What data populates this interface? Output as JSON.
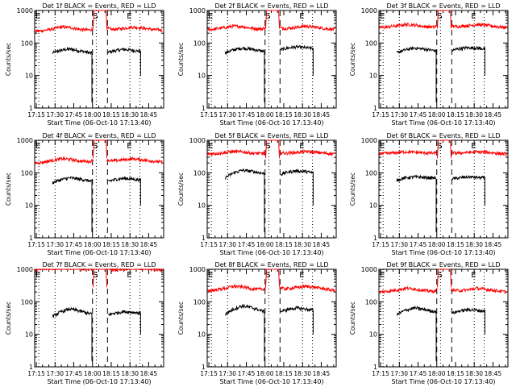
{
  "figure": {
    "background": "#ffffff",
    "axis_color": "#000000",
    "events_color": "#000000",
    "lld_color": "#ff0000"
  },
  "shared_axes": {
    "xlabel": "Start Time (06-Oct-10 17:13:40)",
    "ylabel": "Counts/sec",
    "x_tick_labels": [
      "17:15",
      "17:30",
      "17:45",
      "18:00",
      "18:15",
      "18:30",
      "18:45"
    ],
    "x_ticks_minutes_after_17h": [
      15,
      30,
      45,
      60,
      75,
      90,
      105
    ],
    "xlim_minutes_after_17h": [
      13.67,
      117
    ],
    "ylim": [
      1,
      1000
    ],
    "yscale": "log",
    "y_tick_labels": [
      "1",
      "10",
      "100",
      "1000"
    ],
    "y_ticks": [
      1,
      10,
      100,
      1000
    ],
    "markers": [
      {
        "label": "E",
        "minutes_after_17h": 17,
        "style": "dotted"
      },
      {
        "label": "",
        "minutes_after_17h": 30,
        "style": "dotted"
      },
      {
        "label": "",
        "minutes_after_17h": 60,
        "style": "dashed"
      },
      {
        "label": "S",
        "minutes_after_17h": 63,
        "style": "dotted"
      },
      {
        "label": "",
        "minutes_after_17h": 72,
        "style": "dashed"
      },
      {
        "label": "E",
        "minutes_after_17h": 90,
        "style": "dotted"
      },
      {
        "label": "",
        "minutes_after_17h": 98,
        "style": "dotted"
      }
    ]
  },
  "chart_data": [
    {
      "type": "line",
      "title": "Det 1f BLACK = Events, RED = LLD",
      "series": [
        {
          "name": "Events",
          "color": "#000000",
          "segments": [
            {
              "x": [
                28,
                35,
                42,
                50,
                56,
                59.5
              ],
              "y": [
                50,
                60,
                65,
                57,
                52,
                48
              ]
            },
            {
              "x": [
                72.5,
                78,
                85,
                92,
                98.5
              ],
              "y": [
                52,
                58,
                64,
                60,
                55
              ]
            }
          ]
        },
        {
          "name": "LLD",
          "color": "#ff0000",
          "segments": [
            {
              "x": [
                14,
                20,
                28,
                35,
                42,
                50,
                58,
                60.5
              ],
              "y": [
                230,
                240,
                270,
                310,
                300,
                260,
                250,
                280
              ]
            },
            {
              "x": [
                71.5,
                76,
                84,
                92,
                100,
                108,
                116
              ],
              "y": [
                280,
                260,
                280,
                310,
                290,
                260,
                250
              ]
            }
          ]
        }
      ]
    },
    {
      "type": "line",
      "title": "Det 2f BLACK = Events, RED = LLD",
      "series": [
        {
          "name": "Events",
          "color": "#000000",
          "segments": [
            {
              "x": [
                28,
                35,
                42,
                50,
                56,
                59.5
              ],
              "y": [
                50,
                62,
                70,
                64,
                58,
                55
              ]
            },
            {
              "x": [
                72.5,
                78,
                85,
                92,
                98.5
              ],
              "y": [
                62,
                70,
                76,
                72,
                68
              ]
            }
          ]
        },
        {
          "name": "LLD",
          "color": "#ff0000",
          "segments": [
            {
              "x": [
                14,
                20,
                28,
                35,
                42,
                50,
                58,
                60.5
              ],
              "y": [
                260,
                270,
                300,
                330,
                320,
                280,
                270,
                300
              ]
            },
            {
              "x": [
                71.5,
                76,
                84,
                92,
                100,
                108,
                116
              ],
              "y": [
                300,
                280,
                300,
                330,
                310,
                280,
                260
              ]
            }
          ]
        }
      ]
    },
    {
      "type": "line",
      "title": "Det 3f BLACK = Events, RED = LLD",
      "series": [
        {
          "name": "Events",
          "color": "#000000",
          "segments": [
            {
              "x": [
                28,
                35,
                42,
                50,
                56,
                59.5
              ],
              "y": [
                50,
                62,
                70,
                65,
                60,
                57
              ]
            },
            {
              "x": [
                72.5,
                78,
                85,
                92,
                98.5
              ],
              "y": [
                60,
                67,
                72,
                70,
                66
              ]
            }
          ]
        },
        {
          "name": "LLD",
          "color": "#ff0000",
          "segments": [
            {
              "x": [
                14,
                20,
                28,
                35,
                42,
                50,
                58,
                60.5
              ],
              "y": [
                300,
                310,
                340,
                370,
                360,
                320,
                310,
                340
              ]
            },
            {
              "x": [
                71.5,
                76,
                84,
                92,
                100,
                108,
                116
              ],
              "y": [
                340,
                320,
                340,
                370,
                350,
                320,
                300
              ]
            }
          ]
        }
      ]
    },
    {
      "type": "line",
      "title": "Det 4f BLACK = Events, RED = LLD",
      "series": [
        {
          "name": "Events",
          "color": "#000000",
          "segments": [
            {
              "x": [
                28,
                35,
                42,
                50,
                56,
                59.5
              ],
              "y": [
                50,
                62,
                70,
                64,
                58,
                55
              ]
            },
            {
              "x": [
                72.5,
                78,
                85,
                92,
                98.5
              ],
              "y": [
                55,
                62,
                68,
                64,
                60
              ]
            }
          ]
        },
        {
          "name": "LLD",
          "color": "#ff0000",
          "segments": [
            {
              "x": [
                14,
                20,
                28,
                35,
                42,
                50,
                58,
                60.5
              ],
              "y": [
                200,
                210,
                240,
                270,
                260,
                230,
                220,
                250
              ]
            },
            {
              "x": [
                71.5,
                76,
                84,
                92,
                100,
                108,
                116
              ],
              "y": [
                250,
                230,
                250,
                270,
                250,
                230,
                210
              ]
            }
          ]
        }
      ]
    },
    {
      "type": "line",
      "title": "Det 5f BLACK = Events, RED = LLD",
      "series": [
        {
          "name": "Events",
          "color": "#000000",
          "segments": [
            {
              "x": [
                28,
                35,
                42,
                50,
                56,
                59.5
              ],
              "y": [
                70,
                100,
                120,
                110,
                100,
                95
              ]
            },
            {
              "x": [
                72.5,
                78,
                85,
                92,
                98.5
              ],
              "y": [
                90,
                105,
                115,
                110,
                100
              ]
            }
          ]
        },
        {
          "name": "LLD",
          "color": "#ff0000",
          "segments": [
            {
              "x": [
                14,
                20,
                28,
                35,
                42,
                50,
                58,
                60.5
              ],
              "y": [
                380,
                390,
                420,
                450,
                440,
                400,
                390,
                420
              ]
            },
            {
              "x": [
                71.5,
                76,
                84,
                92,
                100,
                108,
                116
              ],
              "y": [
                420,
                400,
                420,
                450,
                430,
                400,
                380
              ]
            }
          ]
        }
      ]
    },
    {
      "type": "line",
      "title": "Det 6f BLACK = Events, RED = LLD",
      "series": [
        {
          "name": "Events",
          "color": "#000000",
          "segments": [
            {
              "x": [
                28,
                35,
                42,
                50,
                56,
                59.5
              ],
              "y": [
                60,
                70,
                75,
                72,
                70,
                68
              ]
            },
            {
              "x": [
                72.5,
                78,
                85,
                92,
                98.5
              ],
              "y": [
                65,
                70,
                75,
                72,
                70
              ]
            }
          ]
        },
        {
          "name": "LLD",
          "color": "#ff0000",
          "segments": [
            {
              "x": [
                14,
                20,
                28,
                35,
                42,
                50,
                58,
                60.5
              ],
              "y": [
                390,
                395,
                420,
                440,
                430,
                410,
                400,
                420
              ]
            },
            {
              "x": [
                71.5,
                76,
                84,
                92,
                100,
                108,
                116
              ],
              "y": [
                420,
                400,
                420,
                440,
                430,
                400,
                380
              ]
            }
          ]
        }
      ]
    },
    {
      "type": "line",
      "title": "Det 7f BLACK = Events, RED = LLD",
      "series": [
        {
          "name": "Events",
          "color": "#000000",
          "segments": [
            {
              "x": [
                28,
                35,
                42,
                50,
                56,
                59.5
              ],
              "y": [
                35,
                50,
                60,
                52,
                45,
                42
              ]
            },
            {
              "x": [
                72.5,
                78,
                85,
                92,
                98.5
              ],
              "y": [
                40,
                45,
                50,
                48,
                45
              ]
            }
          ]
        },
        {
          "name": "LLD",
          "color": "#ff0000",
          "segments": [
            {
              "x": [
                14,
                20,
                28,
                35,
                42,
                50,
                58,
                60.5
              ],
              "y": [
                1000,
                1000,
                1050,
                1100,
                1080,
                1020,
                1000,
                1050
              ]
            },
            {
              "x": [
                71.5,
                76,
                84,
                92,
                100,
                108,
                116
              ],
              "y": [
                1050,
                1000,
                1020,
                1080,
                1050,
                1000,
                980
              ]
            }
          ]
        }
      ]
    },
    {
      "type": "line",
      "title": "Det 8f BLACK = Events, RED = LLD",
      "series": [
        {
          "name": "Events",
          "color": "#000000",
          "segments": [
            {
              "x": [
                28,
                35,
                42,
                50,
                56,
                59.5
              ],
              "y": [
                40,
                60,
                75,
                65,
                55,
                50
              ]
            },
            {
              "x": [
                72.5,
                78,
                85,
                92,
                98.5
              ],
              "y": [
                50,
                58,
                65,
                60,
                55
              ]
            }
          ]
        },
        {
          "name": "LLD",
          "color": "#ff0000",
          "segments": [
            {
              "x": [
                14,
                20,
                28,
                35,
                42,
                50,
                58,
                60.5
              ],
              "y": [
                220,
                230,
                260,
                300,
                290,
                250,
                240,
                270
              ]
            },
            {
              "x": [
                71.5,
                76,
                84,
                92,
                100,
                108,
                116
              ],
              "y": [
                270,
                250,
                270,
                300,
                280,
                250,
                220
              ]
            }
          ]
        }
      ]
    },
    {
      "type": "line",
      "title": "Det 9f BLACK = Events, RED = LLD",
      "series": [
        {
          "name": "Events",
          "color": "#000000",
          "segments": [
            {
              "x": [
                28,
                35,
                42,
                50,
                56,
                59.5
              ],
              "y": [
                40,
                55,
                65,
                58,
                52,
                50
              ]
            },
            {
              "x": [
                72.5,
                78,
                85,
                92,
                98.5
              ],
              "y": [
                45,
                52,
                58,
                55,
                52
              ]
            }
          ]
        },
        {
          "name": "LLD",
          "color": "#ff0000",
          "segments": [
            {
              "x": [
                14,
                20,
                28,
                35,
                42,
                50,
                58,
                60.5
              ],
              "y": [
                200,
                210,
                230,
                260,
                250,
                220,
                210,
                240
              ]
            },
            {
              "x": [
                71.5,
                76,
                84,
                92,
                100,
                108,
                116
              ],
              "y": [
                240,
                220,
                230,
                260,
                240,
                220,
                200
              ]
            }
          ]
        }
      ]
    }
  ]
}
